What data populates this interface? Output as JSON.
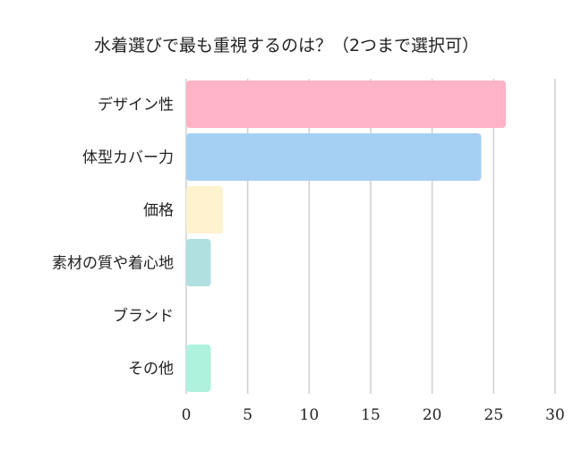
{
  "chart_data": {
    "type": "bar",
    "orientation": "horizontal",
    "title": "水着選びで最も重視するのは？（2つまで選択可）",
    "categories": [
      "デザイン性",
      "体型カバー力",
      "価格",
      "素材の質や着心地",
      "ブランド",
      "その他"
    ],
    "values": [
      26,
      24,
      3,
      2,
      0,
      2
    ],
    "colors": [
      "#ffb3c6",
      "#a6d0f3",
      "#fff2cf",
      "#b0e0e0",
      "#d9c6f0",
      "#aef2de"
    ],
    "xlim": [
      0,
      30
    ],
    "xticks": [
      0,
      5,
      10,
      15,
      20,
      25,
      30
    ],
    "grid": true,
    "legend": "none"
  }
}
